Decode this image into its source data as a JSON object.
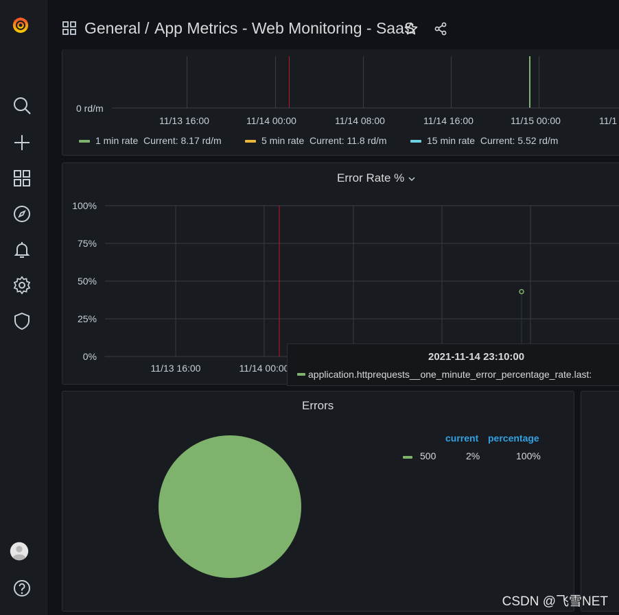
{
  "breadcrumb": {
    "folder": "General",
    "separator": "/",
    "dashboard": "App Metrics - Web Monitoring - SaaS"
  },
  "colors": {
    "green": "#7eb26d",
    "yellow": "#eab839",
    "cyan": "#6ed0e0",
    "accent_blue": "#33a2e5",
    "annotation_red": "#c4162a"
  },
  "sidebar": {
    "items": [
      {
        "name": "search-icon"
      },
      {
        "name": "plus-icon"
      },
      {
        "name": "dashboards-icon"
      },
      {
        "name": "explore-icon"
      },
      {
        "name": "bell-icon"
      },
      {
        "name": "gear-icon"
      },
      {
        "name": "shield-icon"
      }
    ]
  },
  "rate_panel": {
    "y_label": "0 rd/m",
    "x_ticks": [
      "11/13 16:00",
      "11/14 00:00",
      "11/14 08:00",
      "11/14 16:00",
      "11/15 00:00",
      "11/1"
    ],
    "legend": [
      {
        "label": "1 min rate",
        "current": "Current: 8.17 rd/m",
        "color": "#7eb26d"
      },
      {
        "label": "5 min rate",
        "current": "Current: 11.8 rd/m",
        "color": "#eab839"
      },
      {
        "label": "15 min rate",
        "current": "Current: 5.52 rd/m",
        "color": "#6ed0e0"
      }
    ]
  },
  "error_panel": {
    "title": "Error Rate %",
    "y_ticks": [
      "100%",
      "75%",
      "50%",
      "25%",
      "0%"
    ],
    "x_ticks": [
      "11/13 16:00",
      "11/14 00:00"
    ]
  },
  "chart_data": {
    "type": "scatter",
    "title": "Error Rate %",
    "series": [
      {
        "name": "application.httprequests__one_minute_error_percentage_rate.last:",
        "x": [
          "2021-11-14 23:10:00"
        ],
        "y": [
          43
        ]
      }
    ],
    "ylim": [
      0,
      100
    ]
  },
  "tooltip": {
    "time": "2021-11-14 23:10:00",
    "series": "application.httprequests__one_minute_error_percentage_rate.last:"
  },
  "errors_panel": {
    "title": "Errors",
    "columns": {
      "current": "current",
      "percentage": "percentage"
    },
    "rows": [
      {
        "label": "500",
        "current": "2%",
        "percentage": "100%",
        "color": "#7eb26d"
      }
    ]
  },
  "watermark": "CSDN @飞雪NET"
}
